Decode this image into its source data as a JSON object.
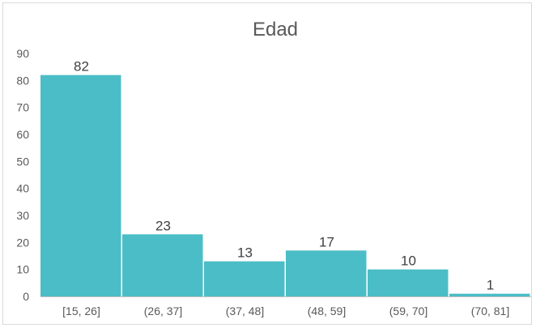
{
  "chart_data": {
    "type": "bar",
    "title": "Edad",
    "xlabel": "",
    "ylabel": "",
    "categories": [
      "[15, 26]",
      "(26, 37]",
      "(37, 48]",
      "(48, 59]",
      "(59, 70]",
      "(70, 81]"
    ],
    "values": [
      82,
      23,
      13,
      17,
      10,
      1
    ],
    "data_labels": [
      "82",
      "23",
      "13",
      "17",
      "10",
      "1"
    ],
    "yticks": [
      "0",
      "10",
      "20",
      "30",
      "40",
      "50",
      "60",
      "70",
      "80",
      "90"
    ],
    "ylim": [
      0,
      90
    ],
    "grid": false,
    "legend": "none",
    "bar_color": "#4bbdc7",
    "text_color": "#595959"
  }
}
